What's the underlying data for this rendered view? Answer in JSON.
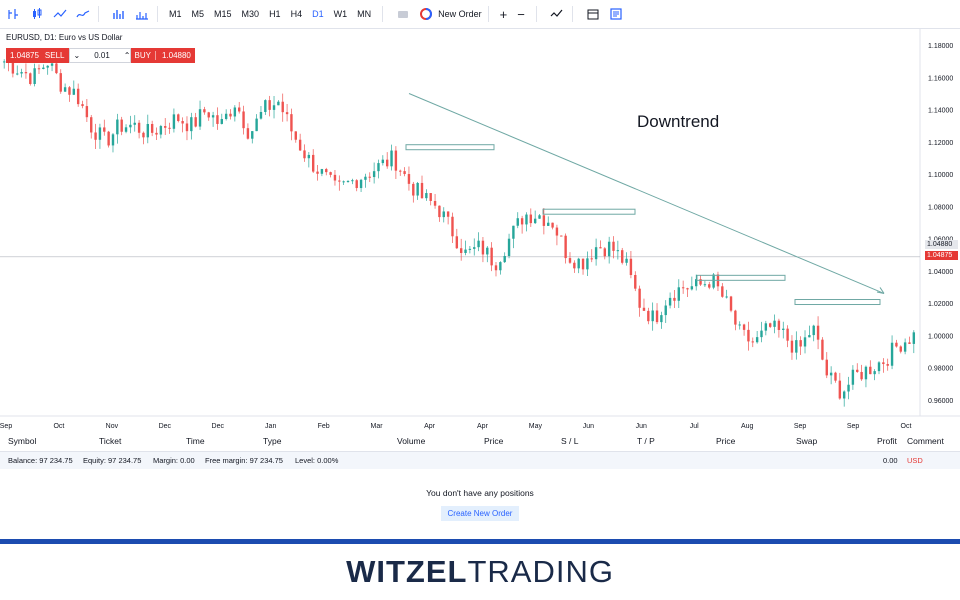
{
  "toolbar": {
    "timeframes": [
      "M1",
      "M5",
      "M15",
      "M30",
      "H1",
      "H4",
      "D1",
      "W1",
      "MN"
    ],
    "active_timeframe": "D1",
    "new_order_label": "New Order",
    "plus": "+",
    "minus": "−"
  },
  "chart": {
    "title": "EURUSD, D1: Euro vs US Dollar",
    "sell_price": "1.04875",
    "sell_label": "SELL",
    "lot": "0.01",
    "buy_label": "BUY",
    "buy_price": "1.04880",
    "annotation": "Downtrend",
    "ask_tag": "1.04880",
    "bid_tag": "1.04875",
    "y_ticks": [
      "1.18000",
      "1.16000",
      "1.14000",
      "1.12000",
      "1.10000",
      "1.08000",
      "1.06000",
      "1.04000",
      "1.02000",
      "1.00000",
      "0.98000",
      "0.96000"
    ],
    "x_ticks": [
      "Sep",
      "Oct",
      "Nov",
      "Dec",
      "Dec",
      "Jan",
      "Feb",
      "Mar",
      "Apr",
      "Apr",
      "May",
      "Jun",
      "Jun",
      "Jul",
      "Aug",
      "Sep",
      "Sep",
      "Oct"
    ],
    "colors": {
      "up": "#26a69a",
      "down": "#ef5350",
      "trend": "#6fa8a4",
      "accent": "#2962ff"
    }
  },
  "chart_data": {
    "type": "candlestick",
    "title": "EURUSD, D1: Euro vs US Dollar",
    "ylim": [
      0.95,
      1.19
    ],
    "series": [
      {
        "name": "EURUSD",
        "close": [
          1.17,
          1.165,
          1.16,
          1.17,
          1.155,
          1.15,
          1.13,
          1.12,
          1.13,
          1.13,
          1.125,
          1.13,
          1.135,
          1.13,
          1.14,
          1.13,
          1.145,
          1.125,
          1.14,
          1.145,
          1.125,
          1.11,
          1.1,
          1.09,
          1.095,
          1.1,
          1.105,
          1.11,
          1.095,
          1.085,
          1.08,
          1.065,
          1.05,
          1.055,
          1.045,
          1.06,
          1.075,
          1.075,
          1.07,
          1.05,
          1.045,
          1.055,
          1.055,
          1.045,
          1.02,
          1.01,
          1.025,
          1.03,
          1.03,
          1.035,
          1.02,
          1.0,
          0.995,
          1.005,
          1.0,
          0.99,
          1.005,
          0.975,
          0.965,
          0.975,
          0.98,
          0.985,
          0.995,
          1.0
        ]
      }
    ],
    "trendline": {
      "from": 1.15,
      "to": 1.026
    },
    "resistance_zones": [
      1.117,
      1.077,
      1.036,
      1.021
    ]
  },
  "positions": {
    "columns": [
      "Symbol",
      "Ticket",
      "Time",
      "Type",
      "Volume",
      "Price",
      "S / L",
      "T / P",
      "Price",
      "Swap",
      "Profit",
      "Comment"
    ],
    "balance_items": [
      "Balance: 97 234.75",
      "Equity: 97 234.75",
      "Margin: 0.00",
      "Free margin: 97 234.75",
      "Level: 0.00%"
    ],
    "profit_total": "0.00",
    "currency": "USD",
    "empty_message": "You don't have any positions",
    "create_button": "Create New Order"
  },
  "brand": {
    "part1": "W",
    "part2": "ITZEL",
    "part3": "TRADING"
  }
}
